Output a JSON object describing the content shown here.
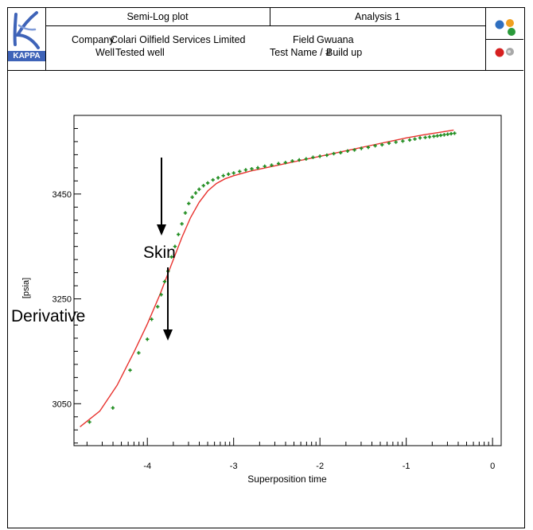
{
  "header": {
    "logo_text": "KAPPA",
    "plot_title": "Semi-Log plot",
    "analysis": "Analysis 1",
    "company_label": "Company",
    "company_value": "Colari Oilfield Services Limited",
    "field_label": "Field",
    "field_value": "Gwuana",
    "well_label": "Well",
    "well_value": "Tested well",
    "test_label": "Test Name / #",
    "test_value": "Build up",
    "brand_colors": [
      "#2f6fbf",
      "#f0a020",
      "#2a9a3a",
      "#d62020",
      "#999999"
    ]
  },
  "annotations": {
    "skin": "Skin",
    "derivative": "Derivative"
  },
  "chart_data": {
    "type": "scatter",
    "xlabel": "Superposition time",
    "ylabel": "[psia]",
    "xlim": [
      -4.85,
      0.1
    ],
    "ylim": [
      2970,
      3600
    ],
    "x_ticks": [
      -4,
      -3,
      -2,
      -1,
      0
    ],
    "x_tick_labels": [
      "-4",
      "-3",
      "-2",
      "-1",
      "0"
    ],
    "y_ticks": [
      3050,
      3250,
      3450
    ],
    "y_tick_labels": [
      "3050",
      "3250",
      "3450"
    ],
    "grid": false,
    "series": [
      {
        "kind": "points",
        "color": "#1e8c1e",
        "points": [
          [
            -4.67,
            3015
          ],
          [
            -4.4,
            3042
          ],
          [
            -4.2,
            3114
          ],
          [
            -4.1,
            3147
          ],
          [
            -4.0,
            3173
          ],
          [
            -3.95,
            3211
          ],
          [
            -3.88,
            3235
          ],
          [
            -3.84,
            3258
          ],
          [
            -3.8,
            3283
          ],
          [
            -3.76,
            3303
          ],
          [
            -3.72,
            3330
          ],
          [
            -3.68,
            3350
          ],
          [
            -3.64,
            3373
          ],
          [
            -3.6,
            3393
          ],
          [
            -3.56,
            3414
          ],
          [
            -3.52,
            3432
          ],
          [
            -3.48,
            3444
          ],
          [
            -3.44,
            3452
          ],
          [
            -3.4,
            3459
          ],
          [
            -3.35,
            3466
          ],
          [
            -3.3,
            3471
          ],
          [
            -3.24,
            3477
          ],
          [
            -3.18,
            3481
          ],
          [
            -3.12,
            3485
          ],
          [
            -3.06,
            3488
          ],
          [
            -3.0,
            3490
          ],
          [
            -2.93,
            3493
          ],
          [
            -2.86,
            3496
          ],
          [
            -2.79,
            3498
          ],
          [
            -2.72,
            3500
          ],
          [
            -2.64,
            3503
          ],
          [
            -2.56,
            3505
          ],
          [
            -2.48,
            3508
          ],
          [
            -2.4,
            3510
          ],
          [
            -2.32,
            3513
          ],
          [
            -2.24,
            3515
          ],
          [
            -2.16,
            3517
          ],
          [
            -2.08,
            3520
          ],
          [
            -2.0,
            3522
          ],
          [
            -1.92,
            3524
          ],
          [
            -1.84,
            3527
          ],
          [
            -1.76,
            3529
          ],
          [
            -1.68,
            3532
          ],
          [
            -1.6,
            3534
          ],
          [
            -1.52,
            3537
          ],
          [
            -1.44,
            3539
          ],
          [
            -1.36,
            3542
          ],
          [
            -1.28,
            3544
          ],
          [
            -1.2,
            3547
          ],
          [
            -1.12,
            3549
          ],
          [
            -1.04,
            3551
          ],
          [
            -0.96,
            3553
          ],
          [
            -0.9,
            3555
          ],
          [
            -0.84,
            3557
          ],
          [
            -0.78,
            3558
          ],
          [
            -0.73,
            3559
          ],
          [
            -0.68,
            3560
          ],
          [
            -0.64,
            3561
          ],
          [
            -0.6,
            3562
          ],
          [
            -0.56,
            3563
          ],
          [
            -0.52,
            3564
          ],
          [
            -0.48,
            3565
          ],
          [
            -0.44,
            3566
          ]
        ]
      },
      {
        "kind": "line",
        "color": "#e8322e",
        "points": [
          [
            -4.78,
            3006
          ],
          [
            -4.55,
            3036
          ],
          [
            -4.35,
            3085
          ],
          [
            -4.15,
            3150
          ],
          [
            -4.0,
            3202
          ],
          [
            -3.85,
            3260
          ],
          [
            -3.72,
            3316
          ],
          [
            -3.6,
            3367
          ],
          [
            -3.5,
            3405
          ],
          [
            -3.4,
            3434
          ],
          [
            -3.3,
            3456
          ],
          [
            -3.2,
            3470
          ],
          [
            -3.1,
            3479
          ],
          [
            -3.0,
            3485
          ],
          [
            -2.8,
            3494
          ],
          [
            -2.6,
            3501
          ],
          [
            -2.4,
            3508
          ],
          [
            -2.2,
            3515
          ],
          [
            -2.0,
            3522
          ],
          [
            -1.8,
            3529
          ],
          [
            -1.6,
            3536
          ],
          [
            -1.4,
            3543
          ],
          [
            -1.2,
            3550
          ],
          [
            -1.0,
            3557
          ],
          [
            -0.8,
            3563
          ],
          [
            -0.6,
            3568
          ],
          [
            -0.45,
            3572
          ]
        ]
      }
    ]
  }
}
